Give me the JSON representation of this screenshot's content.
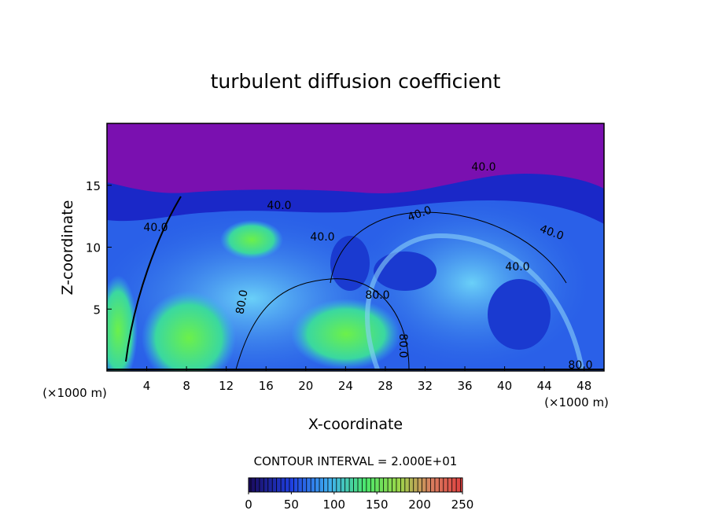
{
  "chart_data": {
    "type": "contour",
    "title": "turbulent diffusion coefficient",
    "xlabel": "X-coordinate",
    "ylabel": "Z-coordinate",
    "unit_label": "(×1000 m)",
    "xlim": [
      0,
      50
    ],
    "ylim": [
      0,
      20
    ],
    "xticks": [
      4,
      8,
      12,
      16,
      20,
      24,
      28,
      32,
      36,
      40,
      44,
      48
    ],
    "yticks": [
      5,
      10,
      15
    ],
    "contour_labels": [
      "40.0",
      "40.0",
      "40.0",
      "40.0",
      "40.0",
      "40.0",
      "40.0",
      "80.0",
      "80.0",
      "80.0",
      "80.0"
    ],
    "colorbar": {
      "label": "CONTOUR INTERVAL = 2.000E+01",
      "lim": [
        0,
        250
      ],
      "ticks": [
        0,
        50,
        100,
        150,
        200,
        250
      ]
    }
  }
}
